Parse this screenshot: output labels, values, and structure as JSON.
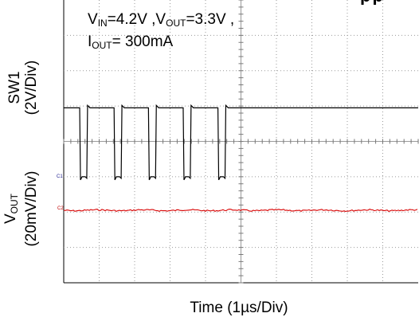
{
  "chart_data": {
    "type": "line",
    "title": "",
    "title_fragment": "pp",
    "annotation": {
      "vin": "V<sub>IN</sub>=4.2V ,V<sub>OUT</sub>=3.3V ,",
      "iout": "I<sub>OUT</sub>= 300mA"
    },
    "xlabel": "Time (1µs/Div)",
    "grid": true,
    "divisions": {
      "x": 10,
      "y": 8
    },
    "series": [
      {
        "name": "SW1",
        "label_line1": "SW1",
        "label_line2": "(2V/Div)",
        "marker": "C1",
        "color": "#000000",
        "high_div": 4.95,
        "low_div": 3.0,
        "low_intervals_div": [
          [
            0.45,
            0.65
          ],
          [
            1.42,
            1.62
          ],
          [
            2.39,
            2.59
          ],
          [
            3.37,
            3.57
          ],
          [
            4.35,
            4.55
          ]
        ]
      },
      {
        "name": "VOUT",
        "label_line1": "V<sub>OUT</sub>",
        "label_line2": "(20mV/Div)",
        "marker": "C2",
        "color": "#d80000",
        "level_div": 2.05
      }
    ]
  }
}
